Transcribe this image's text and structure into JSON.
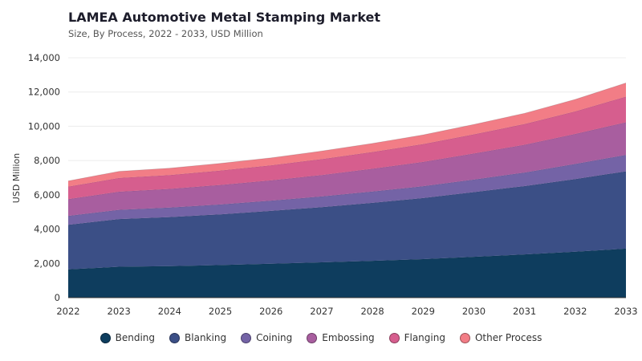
{
  "header": {
    "title": "LAMEA Automotive Metal Stamping Market",
    "subtitle": "Size, By Process, 2022 - 2033, USD Million"
  },
  "chart_data": {
    "type": "area",
    "stacked": true,
    "title": "LAMEA Automotive Metal Stamping Market",
    "subtitle": "Size, By Process, 2022 - 2033, USD Million",
    "xlabel": "",
    "ylabel": "USD Million",
    "ylim": [
      0,
      14000
    ],
    "yticks": [
      "0",
      "2,000",
      "4,000",
      "6,000",
      "8,000",
      "10,000",
      "12,000",
      "14,000"
    ],
    "x": [
      "2022",
      "2023",
      "2024",
      "2025",
      "2026",
      "2027",
      "2028",
      "2029",
      "2030",
      "2031",
      "2032",
      "2033"
    ],
    "grid": true,
    "legend_position": "bottom",
    "series": [
      {
        "name": "Bending",
        "color": "#0e3d5e",
        "values": [
          1650,
          1800,
          1840,
          1900,
          1980,
          2060,
          2150,
          2250,
          2380,
          2520,
          2680,
          2860
        ]
      },
      {
        "name": "Blanking",
        "color": "#3b4f86",
        "values": [
          2600,
          2780,
          2860,
          2960,
          3080,
          3220,
          3380,
          3560,
          3780,
          3990,
          4240,
          4510
        ]
      },
      {
        "name": "Coining",
        "color": "#7463a6",
        "values": [
          520,
          540,
          555,
          575,
          600,
          625,
          660,
          690,
          730,
          790,
          880,
          960
        ]
      },
      {
        "name": "Embossing",
        "color": "#a85e9f",
        "values": [
          980,
          1060,
          1090,
          1140,
          1180,
          1250,
          1330,
          1420,
          1520,
          1620,
          1750,
          1900
        ]
      },
      {
        "name": "Flanging",
        "color": "#d65e8e",
        "values": [
          730,
          800,
          810,
          840,
          880,
          930,
          980,
          1040,
          1120,
          1210,
          1320,
          1500
        ]
      },
      {
        "name": "Other Process",
        "color": "#f27d86",
        "values": [
          330,
          390,
          400,
          420,
          440,
          470,
          500,
          540,
          580,
          630,
          700,
          800
        ]
      }
    ]
  }
}
